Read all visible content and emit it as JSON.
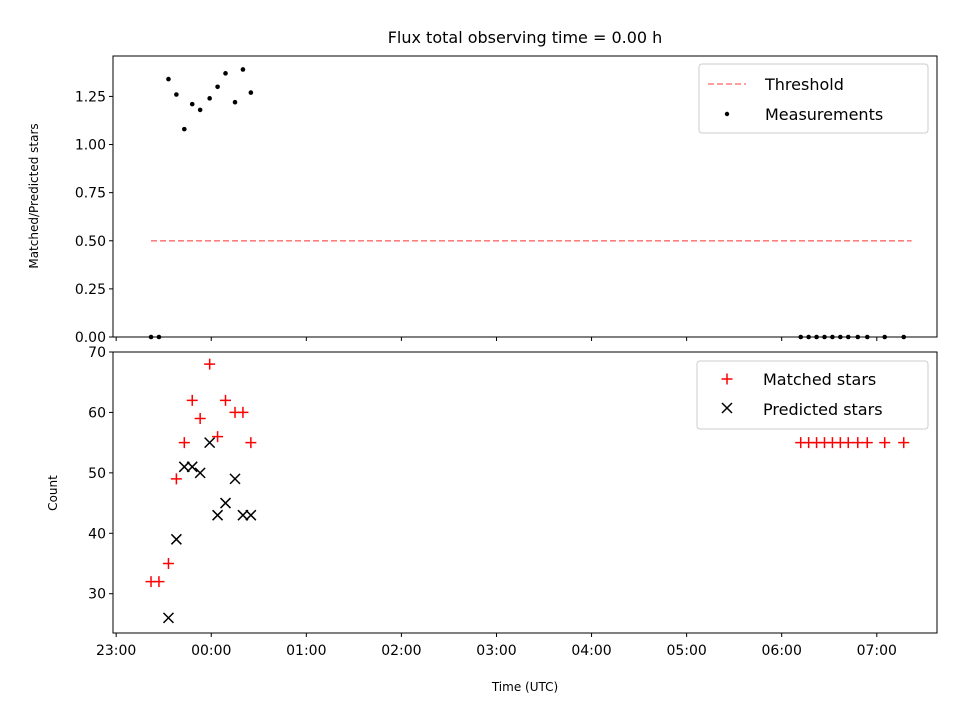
{
  "figure": {
    "title": "Flux total observing time = 0.00 h"
  },
  "chart_data": [
    {
      "type": "scatter",
      "title": "Flux total observing time = 0.00 h",
      "xlabel": "",
      "ylabel": "Matched/Predicted stars",
      "x_unit": "time of day (UTC), sequential hours since 23:00",
      "xlim": [
        "22:58",
        "07:38"
      ],
      "ylim": [
        0,
        1.46
      ],
      "yticks": [
        0.0,
        0.25,
        0.5,
        0.75,
        1.0,
        1.25
      ],
      "ytick_labels": [
        "0.00",
        "0.25",
        "0.50",
        "0.75",
        "1.00",
        "1.25"
      ],
      "grid": false,
      "legend_position": "top-right",
      "series": [
        {
          "name": "Threshold",
          "kind": "dashed-line",
          "color": "#ff7f7f",
          "x": [
            "23:22",
            "07:22"
          ],
          "y": [
            0.5,
            0.5
          ]
        },
        {
          "name": "Measurements",
          "kind": "points",
          "color": "#000000",
          "x": [
            "23:22",
            "23:27",
            "23:33",
            "23:38",
            "23:43",
            "23:48",
            "23:53",
            "23:59",
            "00:04",
            "00:09",
            "00:15",
            "00:20",
            "00:25",
            "06:12",
            "06:17",
            "06:22",
            "06:27",
            "06:32",
            "06:37",
            "06:42",
            "06:48",
            "06:54",
            "07:05",
            "07:17"
          ],
          "y": [
            0,
            0,
            1.34,
            1.26,
            1.08,
            1.21,
            1.18,
            1.24,
            1.3,
            1.37,
            1.22,
            1.39,
            1.27,
            0,
            0,
            0,
            0,
            0,
            0,
            0,
            0,
            0,
            0,
            0
          ]
        }
      ]
    },
    {
      "type": "scatter",
      "title": "",
      "xlabel": "Time (UTC)",
      "ylabel": "Count",
      "x_unit": "time of day (UTC), sequential hours since 23:00",
      "xlim": [
        "22:58",
        "07:38"
      ],
      "xticks": [
        "23:00",
        "00:00",
        "01:00",
        "02:00",
        "03:00",
        "04:00",
        "05:00",
        "06:00",
        "07:00"
      ],
      "ylim": [
        23.5,
        70
      ],
      "yticks": [
        30,
        40,
        50,
        60,
        70
      ],
      "ytick_labels": [
        "30",
        "40",
        "50",
        "60",
        "70"
      ],
      "grid": false,
      "legend_position": "top-right",
      "series": [
        {
          "name": "Matched stars",
          "marker": "plus",
          "color": "#ff0000",
          "x": [
            "23:22",
            "23:27",
            "23:33",
            "23:38",
            "23:43",
            "23:48",
            "23:53",
            "23:59",
            "00:04",
            "00:09",
            "00:15",
            "00:20",
            "00:25",
            "06:12",
            "06:17",
            "06:22",
            "06:27",
            "06:32",
            "06:37",
            "06:42",
            "06:48",
            "06:54",
            "07:05",
            "07:17"
          ],
          "y": [
            32,
            32,
            35,
            49,
            55,
            62,
            59,
            68,
            56,
            62,
            60,
            60,
            55,
            55,
            55,
            55,
            55,
            55,
            55,
            55,
            55,
            55,
            55,
            55
          ]
        },
        {
          "name": "Predicted stars",
          "marker": "x",
          "color": "#000000",
          "x": [
            "23:33",
            "23:38",
            "23:43",
            "23:48",
            "23:53",
            "23:59",
            "00:04",
            "00:09",
            "00:15",
            "00:20",
            "00:25"
          ],
          "y": [
            26,
            39,
            51,
            51,
            50,
            55,
            43,
            45,
            49,
            43,
            43
          ]
        }
      ]
    }
  ]
}
